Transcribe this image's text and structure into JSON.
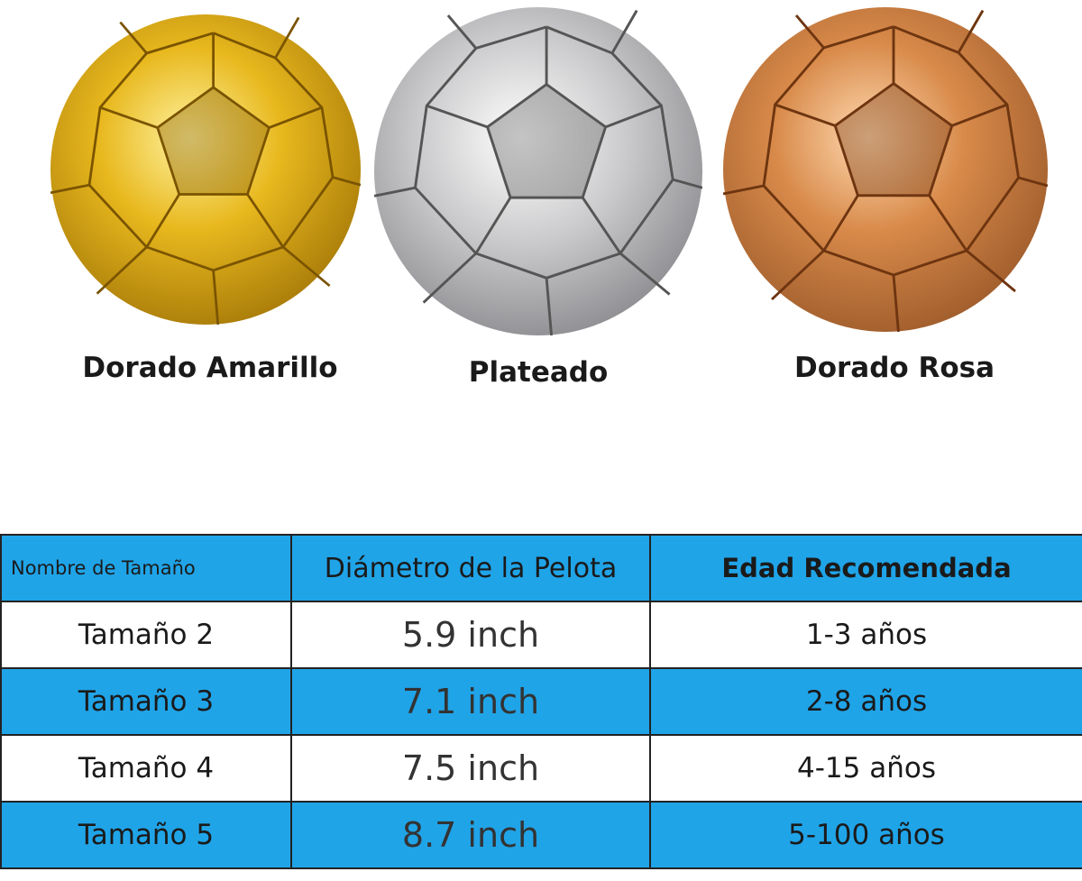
{
  "products": [
    {
      "label": "Dorado Amarillo"
    },
    {
      "label": "Plateado"
    },
    {
      "label": "Dorado Rosa"
    }
  ],
  "table": {
    "header": [
      "Nombre de Tamaño",
      "Diámetro de la Pelota",
      "Edad Recomendada"
    ],
    "rows": [
      [
        "Tamaño 2",
        "5.9 inch",
        "1-3 años"
      ],
      [
        "Tamaño 3",
        "7.1 inch",
        "2-8 años"
      ],
      [
        "Tamaño 4",
        "7.5 inch",
        "4-15 años"
      ],
      [
        "Tamaño 5",
        "8.7 inch",
        "5-100 años"
      ]
    ]
  }
}
